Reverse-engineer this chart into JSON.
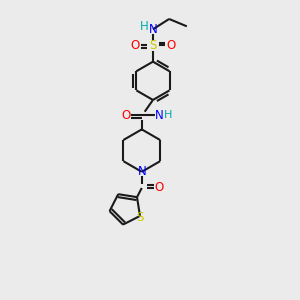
{
  "bg_color": "#ebebeb",
  "atom_colors": {
    "N": "#0000ff",
    "O": "#ff0000",
    "S_sulfonamide": "#cccc00",
    "S_thiophene": "#cccc00",
    "H": "#00aaaa"
  },
  "bond_color": "#1a1a1a",
  "bond_width": 1.5,
  "font_size": 8.5
}
